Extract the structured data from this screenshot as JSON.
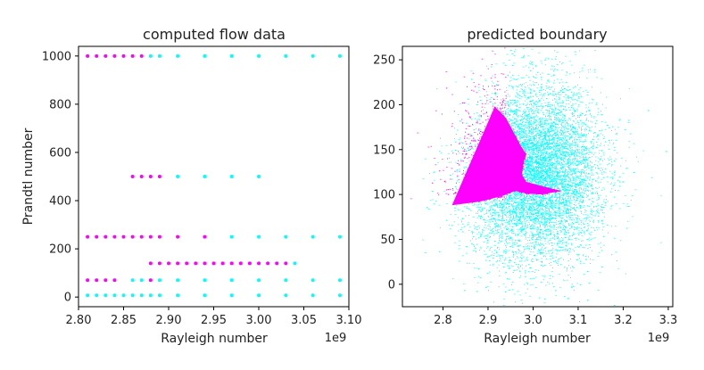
{
  "chart_data": [
    {
      "type": "scatter",
      "title": "computed flow data",
      "xlabel": "Rayleigh number",
      "ylabel": "Prandtl number",
      "x_offset_text": "1e9",
      "xlim": [
        2.8,
        3.1
      ],
      "ylim": [
        -40,
        1040
      ],
      "x_ticks": [
        "2.80",
        "2.85",
        "2.90",
        "2.95",
        "3.00",
        "3.05",
        "3.10"
      ],
      "y_ticks": [
        "0",
        "200",
        "400",
        "600",
        "800",
        "1000"
      ],
      "colors": {
        "stable": "#ff00ff",
        "unstable": "#00ffff"
      },
      "rows": [
        {
          "prandtl": 1000,
          "magenta_x": [
            2.81,
            2.82,
            2.83,
            2.84,
            2.85,
            2.86,
            2.87
          ],
          "cyan_x": [
            2.88,
            2.89,
            2.91,
            2.94,
            2.97,
            3.0,
            3.03,
            3.06,
            3.09
          ]
        },
        {
          "prandtl": 500,
          "magenta_x": [
            2.86,
            2.87,
            2.88,
            2.89
          ],
          "cyan_x": [
            2.91,
            2.94,
            2.97,
            3.0
          ]
        },
        {
          "prandtl": 250,
          "magenta_x": [
            2.81,
            2.82,
            2.83,
            2.84,
            2.85,
            2.86,
            2.87,
            2.88,
            2.89,
            2.91,
            2.94
          ],
          "cyan_x": [
            2.97,
            3.0,
            3.03,
            3.06,
            3.09
          ]
        },
        {
          "prandtl": 140,
          "magenta_x": [
            2.88,
            2.89,
            2.9,
            2.91,
            2.92,
            2.93,
            2.94,
            2.95,
            2.96,
            2.97,
            2.98,
            2.99,
            3.0,
            3.01,
            3.02,
            3.03
          ],
          "cyan_x": [
            3.04
          ]
        },
        {
          "prandtl": 70,
          "magenta_x": [
            2.81,
            2.82,
            2.83,
            2.84,
            2.88
          ],
          "cyan_x": [
            2.86,
            2.87,
            2.89,
            2.91,
            2.94,
            2.97,
            3.0,
            3.03,
            3.06,
            3.09
          ]
        },
        {
          "prandtl": 7,
          "magenta_x": [],
          "cyan_x": [
            2.81,
            2.82,
            2.83,
            2.84,
            2.85,
            2.86,
            2.87,
            2.88,
            2.89,
            2.91,
            2.94,
            2.97,
            3.0,
            3.03,
            3.06,
            3.09
          ]
        }
      ]
    },
    {
      "type": "scatter",
      "title": "predicted boundary",
      "xlabel": "Rayleigh number",
      "x_offset_text": "1e9",
      "xlim": [
        2.71,
        3.31
      ],
      "ylim": [
        -25,
        265
      ],
      "x_ticks": [
        "2.8",
        "2.9",
        "3.0",
        "3.1",
        "3.2",
        "3.3"
      ],
      "y_ticks": [
        "0",
        "50",
        "100",
        "150",
        "200",
        "250"
      ],
      "cloud_center": [
        3.0,
        125
      ],
      "cloud_spread": [
        0.075,
        48
      ],
      "colors": {
        "stable": "#ff00ff",
        "unstable": "#00ffff"
      },
      "boundary": [
        [
          2.915,
          198
        ],
        [
          2.94,
          185
        ],
        [
          2.975,
          152
        ],
        [
          2.985,
          145
        ],
        [
          2.98,
          138
        ],
        [
          2.975,
          122
        ],
        [
          2.985,
          114
        ],
        [
          3.03,
          108
        ],
        [
          3.063,
          104
        ],
        [
          3.02,
          100
        ],
        [
          2.985,
          101
        ],
        [
          2.96,
          104
        ],
        [
          2.93,
          98
        ],
        [
          2.88,
          92
        ],
        [
          2.82,
          88
        ]
      ]
    }
  ]
}
